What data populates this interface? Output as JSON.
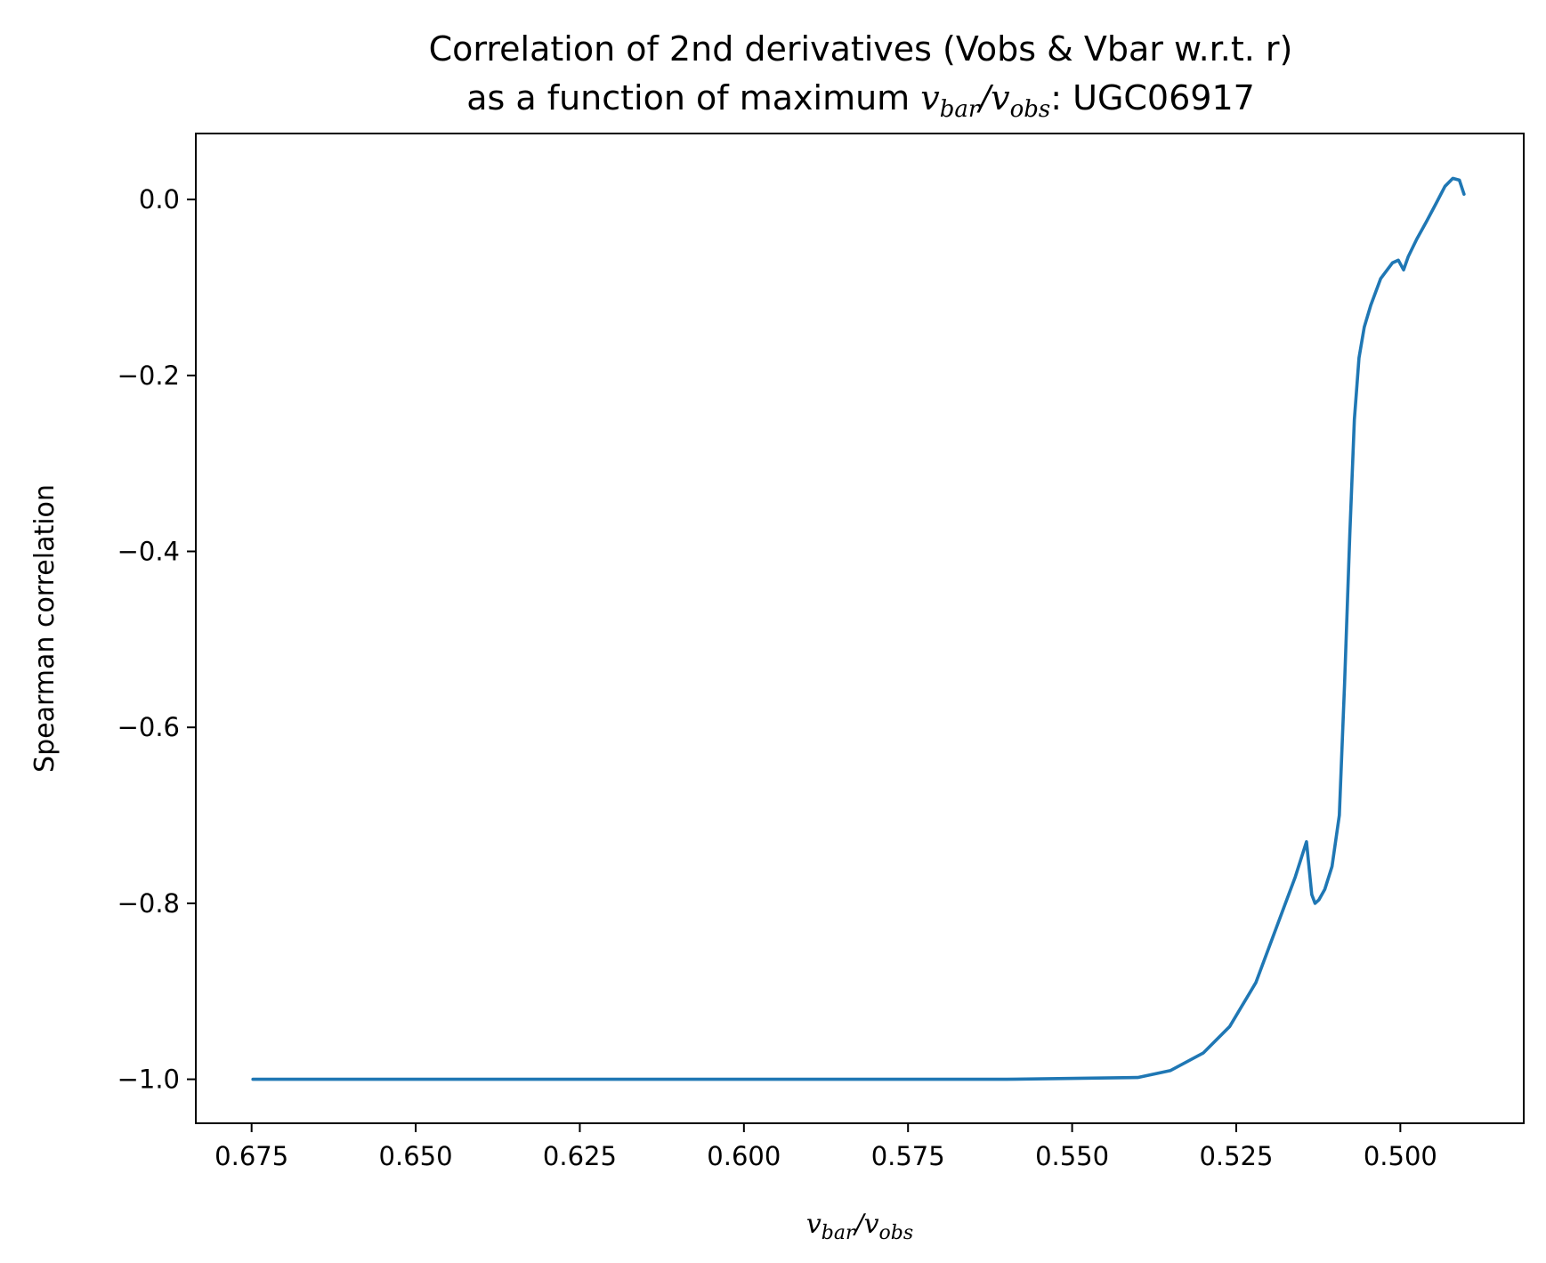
{
  "chart_data": {
    "type": "line",
    "title_line1": "Correlation of 2nd derivatives (Vobs & Vbar w.r.t. r)",
    "title_line2_prefix": "as a function of maximum ",
    "title_line2_suffix": ": UGC06917",
    "xlabel": {
      "v": "v",
      "sub_bar": "bar",
      "slash": "/",
      "sub_obs": "obs"
    },
    "ylabel": "Spearman correlation",
    "xlim": [
      0.6835,
      0.4812
    ],
    "ylim": [
      -1.05,
      0.075
    ],
    "x_inverted": true,
    "grid": false,
    "xticks": [
      0.675,
      0.65,
      0.625,
      0.6,
      0.575,
      0.55,
      0.525,
      0.5
    ],
    "xtick_labels": [
      "0.675",
      "0.650",
      "0.625",
      "0.600",
      "0.575",
      "0.550",
      "0.525",
      "0.500"
    ],
    "yticks": [
      0.0,
      -0.2,
      -0.4,
      -0.6,
      -0.8,
      -1.0
    ],
    "ytick_labels": [
      "0.0",
      "−0.2",
      "−0.4",
      "−0.6",
      "−0.8",
      "−1.0"
    ],
    "line_color": "#1f77b4",
    "x": [
      0.6748,
      0.65,
      0.6,
      0.56,
      0.54,
      0.535,
      0.53,
      0.526,
      0.522,
      0.519,
      0.516,
      0.5143,
      0.5135,
      0.513,
      0.5124,
      0.5115,
      0.5104,
      0.5093,
      0.5085,
      0.5077,
      0.507,
      0.5063,
      0.5055,
      0.5045,
      0.503,
      0.5012,
      0.5003,
      0.4995,
      0.4988,
      0.4975,
      0.496,
      0.4946,
      0.4932,
      0.492,
      0.491,
      0.4903
    ],
    "y": [
      -1.0,
      -1.0,
      -1.0,
      -1.0,
      -0.998,
      -0.99,
      -0.97,
      -0.94,
      -0.89,
      -0.83,
      -0.77,
      -0.73,
      -0.79,
      -0.8,
      -0.796,
      -0.784,
      -0.758,
      -0.7,
      -0.55,
      -0.38,
      -0.25,
      -0.18,
      -0.145,
      -0.12,
      -0.09,
      -0.072,
      -0.069,
      -0.08,
      -0.065,
      -0.045,
      -0.025,
      -0.005,
      0.015,
      0.024,
      0.022,
      0.006
    ]
  }
}
